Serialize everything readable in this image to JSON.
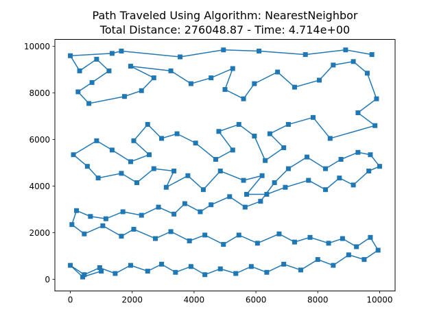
{
  "chart_data": {
    "type": "scatter",
    "title": "Path Traveled Using Algorithm: NearestNeighbor",
    "subtitle": "Total Distance: 276048.87 - Time: 4.714e+00",
    "xlabel": "",
    "ylabel": "",
    "xlim": [
      -500,
      10500
    ],
    "ylim": [
      -500,
      10300
    ],
    "x_ticks": [
      0,
      2000,
      4000,
      6000,
      8000,
      10000
    ],
    "y_ticks": [
      0,
      2000,
      4000,
      6000,
      8000,
      10000
    ],
    "grid": false,
    "legend": "none",
    "marker": "square",
    "connected_path": true,
    "series_color": "#1f77b4",
    "points_x": [
      9750,
      8900,
      7600,
      6100,
      4950,
      3550,
      1650,
      1350,
      0,
      300,
      850,
      1250,
      700,
      250,
      600,
      1750,
      2300,
      2700,
      1950,
      3250,
      3900,
      4550,
      5250,
      5000,
      5600,
      5950,
      6700,
      7250,
      8050,
      8500,
      9150,
      9600,
      9900,
      9300,
      9850,
      8400,
      7850,
      7050,
      6450,
      6900,
      6300,
      5950,
      5450,
      4800,
      5250,
      4700,
      4050,
      3450,
      2950,
      2500,
      2050,
      2550,
      1950,
      1350,
      850,
      100,
      550,
      900,
      1650,
      2150,
      2700,
      3350,
      3100,
      3800,
      4300,
      4850,
      5600,
      6200,
      5700,
      6350,
      6950,
      7700,
      8250,
      8700,
      9150,
      9650,
      10000,
      9700,
      9300,
      8750,
      8250,
      7650,
      7050,
      6600,
      6150,
      5650,
      5150,
      4550,
      4200,
      3700,
      3350,
      2850,
      2300,
      1700,
      1150,
      650,
      200,
      50,
      450,
      1050,
      1650,
      2050,
      2750,
      3250,
      3850,
      4350,
      4950,
      5450,
      6050,
      6750,
      7250,
      7750,
      8350,
      8800,
      9250,
      9700,
      9950,
      9500,
      9000,
      8500,
      8000,
      7450,
      6900,
      6350,
      5850,
      5350,
      4850,
      4350,
      3900,
      3400,
      2950,
      2500,
      1950,
      1450,
      950,
      450,
      0,
      400,
      1000
    ],
    "points_y": [
      9650,
      9850,
      9650,
      9800,
      9850,
      9550,
      9800,
      9700,
      9600,
      8950,
      9450,
      8950,
      8450,
      8050,
      7550,
      7850,
      8100,
      8650,
      9150,
      8950,
      8400,
      8650,
      9050,
      8150,
      7750,
      8400,
      8900,
      8250,
      8550,
      9200,
      9350,
      8850,
      7750,
      7150,
      6600,
      6050,
      6950,
      6650,
      6250,
      5650,
      5100,
      6150,
      6650,
      6350,
      5550,
      5150,
      5850,
      6250,
      6050,
      6650,
      5950,
      5350,
      5050,
      5550,
      5950,
      5350,
      4850,
      4350,
      4550,
      4150,
      4750,
      4650,
      3950,
      4450,
      3850,
      4650,
      4250,
      4450,
      3650,
      3650,
      3950,
      4250,
      3850,
      4350,
      4050,
      4650,
      4850,
      5350,
      5450,
      5150,
      4750,
      5250,
      4750,
      4150,
      3350,
      3100,
      3550,
      3200,
      2900,
      3250,
      2800,
      3100,
      2750,
      2900,
      2600,
      2700,
      2950,
      2350,
      1950,
      2300,
      1850,
      2150,
      1750,
      2050,
      1650,
      1900,
      1500,
      1900,
      1550,
      1950,
      1600,
      1800,
      1550,
      1750,
      1400,
      1800,
      1250,
      850,
      1050,
      600,
      850,
      400,
      650,
      300,
      550,
      250,
      450,
      200,
      550,
      300,
      650,
      350,
      600,
      250,
      500,
      200,
      600,
      100,
      350
    ]
  }
}
